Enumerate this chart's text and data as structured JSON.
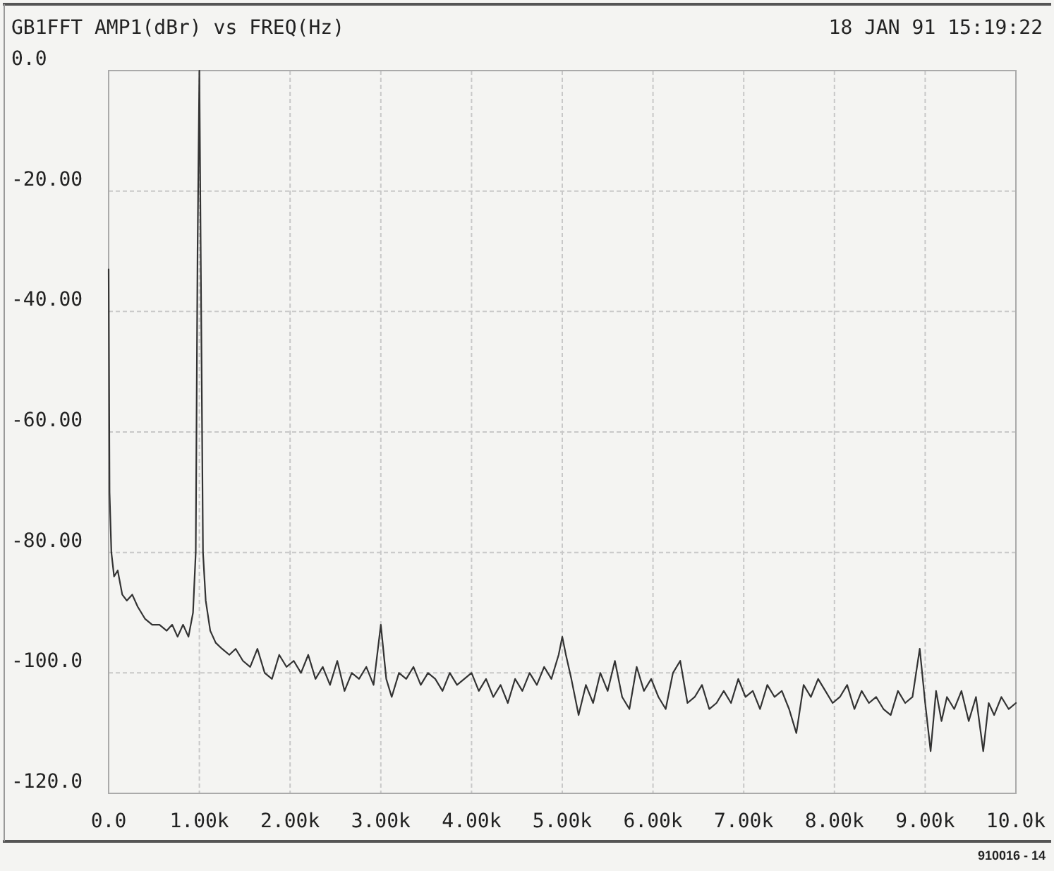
{
  "chart_data": {
    "type": "line",
    "title": "GB1FFT AMP1(dBr) vs FREQ(Hz)",
    "subtitle": "18 JAN 91 15:19:22",
    "annotations": [
      "910016 - 14"
    ],
    "xlim": [
      0,
      10000
    ],
    "ylim": [
      -120,
      0
    ],
    "xticks": [
      {
        "value": 0,
        "label": "0.0"
      },
      {
        "value": 1000,
        "label": "1.00k"
      },
      {
        "value": 2000,
        "label": "2.00k"
      },
      {
        "value": 3000,
        "label": "3.00k"
      },
      {
        "value": 4000,
        "label": "4.00k"
      },
      {
        "value": 5000,
        "label": "5.00k"
      },
      {
        "value": 6000,
        "label": "6.00k"
      },
      {
        "value": 7000,
        "label": "7.00k"
      },
      {
        "value": 8000,
        "label": "8.00k"
      },
      {
        "value": 9000,
        "label": "9.00k"
      },
      {
        "value": 10000,
        "label": "10.0k"
      }
    ],
    "yticks": [
      {
        "value": 0,
        "label": "0.0"
      },
      {
        "value": -20,
        "label": "-20.00"
      },
      {
        "value": -40,
        "label": "-40.00"
      },
      {
        "value": -60,
        "label": "-60.00"
      },
      {
        "value": -80,
        "label": "-80.00"
      },
      {
        "value": -100,
        "label": "-100.0"
      },
      {
        "value": -120,
        "label": "-120.0"
      }
    ],
    "grid": true,
    "line_style": "solid",
    "series": [
      {
        "color": "#333333",
        "x": [
          0,
          10,
          30,
          60,
          100,
          150,
          200,
          260,
          320,
          400,
          480,
          560,
          640,
          700,
          760,
          820,
          880,
          930,
          960,
          980,
          1000,
          1020,
          1040,
          1070,
          1120,
          1180,
          1250,
          1330,
          1400,
          1480,
          1560,
          1640,
          1720,
          1800,
          1880,
          1960,
          2040,
          2120,
          2200,
          2280,
          2360,
          2440,
          2520,
          2600,
          2680,
          2760,
          2840,
          2920,
          3000,
          3060,
          3120,
          3200,
          3280,
          3360,
          3440,
          3520,
          3600,
          3680,
          3760,
          3840,
          3920,
          4000,
          4080,
          4160,
          4240,
          4320,
          4400,
          4480,
          4560,
          4640,
          4720,
          4800,
          4880,
          4960,
          5000,
          5040,
          5100,
          5180,
          5260,
          5340,
          5420,
          5500,
          5580,
          5660,
          5740,
          5820,
          5900,
          5980,
          6060,
          6140,
          6220,
          6300,
          6380,
          6460,
          6540,
          6620,
          6700,
          6780,
          6860,
          6940,
          7020,
          7100,
          7180,
          7260,
          7340,
          7420,
          7500,
          7580,
          7660,
          7740,
          7820,
          7900,
          7980,
          8060,
          8140,
          8220,
          8300,
          8380,
          8460,
          8540,
          8620,
          8700,
          8780,
          8860,
          8940,
          9000,
          9060,
          9120,
          9180,
          9240,
          9320,
          9400,
          9480,
          9560,
          9640,
          9700,
          9760,
          9840,
          9920,
          10000
        ],
        "values": [
          -33,
          -70,
          -80,
          -84,
          -83,
          -87,
          -88,
          -87,
          -89,
          -91,
          -92,
          -92,
          -93,
          -92,
          -94,
          -92,
          -94,
          -90,
          -80,
          -30,
          0,
          -40,
          -80,
          -88,
          -93,
          -95,
          -96,
          -97,
          -96,
          -98,
          -99,
          -96,
          -100,
          -101,
          -97,
          -99,
          -98,
          -100,
          -97,
          -101,
          -99,
          -102,
          -98,
          -103,
          -100,
          -101,
          -99,
          -102,
          -92,
          -101,
          -104,
          -100,
          -101,
          -99,
          -102,
          -100,
          -101,
          -103,
          -100,
          -102,
          -101,
          -100,
          -103,
          -101,
          -104,
          -102,
          -105,
          -101,
          -103,
          -100,
          -102,
          -99,
          -101,
          -97,
          -94,
          -97,
          -101,
          -107,
          -102,
          -105,
          -100,
          -103,
          -98,
          -104,
          -106,
          -99,
          -103,
          -101,
          -104,
          -106,
          -100,
          -98,
          -105,
          -104,
          -102,
          -106,
          -105,
          -103,
          -105,
          -101,
          -104,
          -103,
          -106,
          -102,
          -104,
          -103,
          -106,
          -110,
          -102,
          -104,
          -101,
          -103,
          -105,
          -104,
          -102,
          -106,
          -103,
          -105,
          -104,
          -106,
          -107,
          -103,
          -105,
          -104,
          -96,
          -105,
          -113,
          -103,
          -108,
          -104,
          -106,
          -103,
          -108,
          -104,
          -113,
          -105,
          -107,
          -104,
          -106,
          -105
        ]
      }
    ]
  }
}
